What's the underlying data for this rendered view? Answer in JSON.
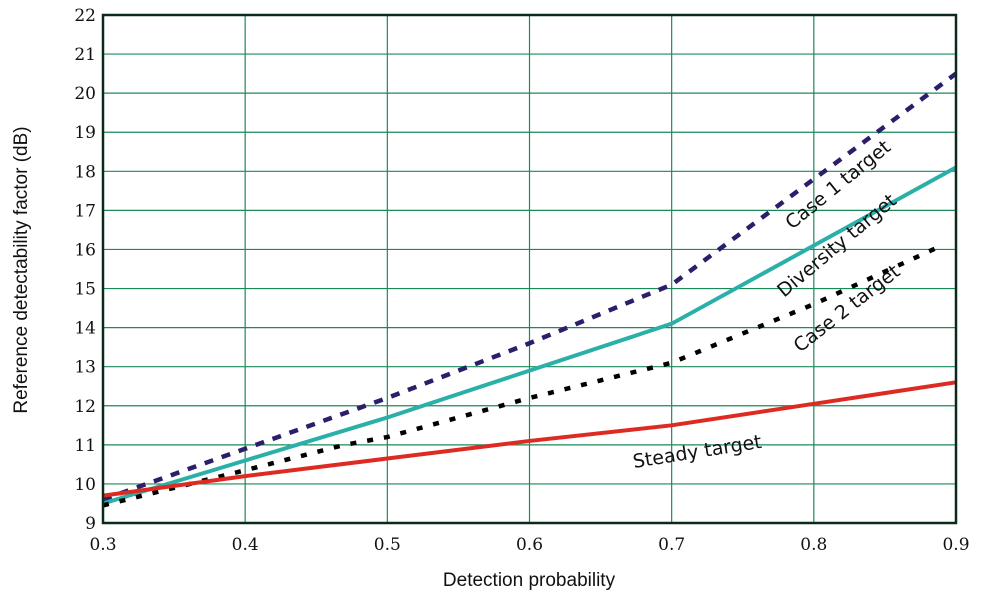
{
  "chart_data": {
    "type": "line",
    "title": "",
    "xlabel": "Detection probability",
    "ylabel": "Reference detectability factor (dB)",
    "xlim": [
      0.3,
      0.9
    ],
    "ylim": [
      9,
      22
    ],
    "grid": true,
    "xticks": [
      "0.3",
      "0.4",
      "0.5",
      "0.6",
      "0.7",
      "0.8",
      "0.9"
    ],
    "yticks": [
      "9",
      "10",
      "11",
      "12",
      "13",
      "14",
      "15",
      "16",
      "17",
      "18",
      "19",
      "20",
      "21",
      "22"
    ],
    "series": [
      {
        "name": "Case 1 target",
        "color": "#2b1f6b",
        "style": "dashed",
        "x": [
          0.3,
          0.4,
          0.5,
          0.6,
          0.7,
          0.8,
          0.9
        ],
        "y": [
          9.6,
          10.9,
          12.2,
          13.6,
          15.1,
          17.8,
          20.5
        ]
      },
      {
        "name": "Diversity target",
        "color": "#2ab0a8",
        "style": "solid",
        "x": [
          0.3,
          0.4,
          0.5,
          0.6,
          0.7,
          0.8,
          0.9
        ],
        "y": [
          9.5,
          10.6,
          11.7,
          12.9,
          14.1,
          16.1,
          18.1
        ]
      },
      {
        "name": "Case 2 target",
        "color": "#000000",
        "style": "dotted",
        "x": [
          0.3,
          0.4,
          0.47,
          0.5,
          0.6,
          0.7,
          0.8,
          0.89
        ],
        "y": [
          9.45,
          10.35,
          11.0,
          11.2,
          12.2,
          13.1,
          14.6,
          16.1
        ]
      },
      {
        "name": "Steady target",
        "color": "#dd2a22",
        "style": "solid",
        "x": [
          0.3,
          0.4,
          0.5,
          0.6,
          0.7,
          0.8,
          0.9
        ],
        "y": [
          9.7,
          10.2,
          10.65,
          11.1,
          11.5,
          12.05,
          12.6
        ]
      }
    ]
  }
}
